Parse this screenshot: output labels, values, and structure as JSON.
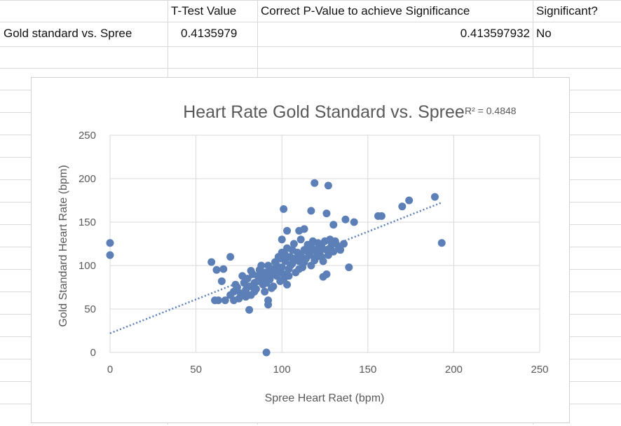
{
  "sheet": {
    "headers": [
      "T-Test Value",
      "Correct P-Value to achieve Significance",
      "Significant?"
    ],
    "row": {
      "label": "Gold standard vs. Spree",
      "ttest": "0.4135979",
      "pvalue": "0.413597932",
      "significant": "No"
    }
  },
  "chart_data": {
    "type": "scatter",
    "title": "Heart Rate Gold Standard vs. Spree",
    "r2_label": "R² = 0.4848",
    "xlabel": "Spree Heart Raet (bpm)",
    "ylabel": "Gold Standard Heart Rate (bpm)",
    "xlim": [
      0,
      250
    ],
    "ylim": [
      0,
      250
    ],
    "xticks": [
      0,
      50,
      100,
      150,
      200,
      250
    ],
    "yticks": [
      0,
      50,
      100,
      150,
      200,
      250
    ],
    "grid": true,
    "color": "#5b7fb6",
    "trendline": {
      "type": "linear",
      "intercept": 22,
      "slope": 0.78,
      "style": "dotted"
    },
    "points": [
      [
        0,
        126
      ],
      [
        0,
        112
      ],
      [
        91,
        0
      ],
      [
        119,
        195
      ],
      [
        127,
        192
      ],
      [
        101,
        165
      ],
      [
        117,
        163
      ],
      [
        126,
        160
      ],
      [
        137,
        153
      ],
      [
        142,
        150
      ],
      [
        130,
        147
      ],
      [
        156,
        157
      ],
      [
        158,
        157
      ],
      [
        170,
        168
      ],
      [
        174,
        175
      ],
      [
        189,
        179
      ],
      [
        193,
        126
      ],
      [
        139,
        98
      ],
      [
        124,
        87
      ],
      [
        126,
        90
      ],
      [
        59,
        104
      ],
      [
        70,
        110
      ],
      [
        62,
        95
      ],
      [
        66,
        96
      ],
      [
        65,
        82
      ],
      [
        61,
        60
      ],
      [
        63,
        60
      ],
      [
        67,
        60
      ],
      [
        72,
        60
      ],
      [
        81,
        49
      ],
      [
        92,
        60
      ],
      [
        92,
        55
      ],
      [
        100,
        130
      ],
      [
        128,
        120
      ],
      [
        134,
        118
      ],
      [
        103,
        140
      ],
      [
        110,
        140
      ],
      [
        113,
        142
      ],
      [
        72,
        70
      ],
      [
        74,
        75
      ],
      [
        76,
        68
      ],
      [
        78,
        80
      ],
      [
        79,
        72
      ],
      [
        80,
        85
      ],
      [
        81,
        76
      ],
      [
        82,
        66
      ],
      [
        83,
        90
      ],
      [
        84,
        80
      ],
      [
        85,
        73
      ],
      [
        86,
        88
      ],
      [
        87,
        95
      ],
      [
        88,
        82
      ],
      [
        89,
        78
      ],
      [
        90,
        92
      ],
      [
        90,
        70
      ],
      [
        91,
        86
      ],
      [
        92,
        100
      ],
      [
        93,
        84
      ],
      [
        94,
        90
      ],
      [
        95,
        96
      ],
      [
        95,
        76
      ],
      [
        96,
        104
      ],
      [
        97,
        88
      ],
      [
        98,
        110
      ],
      [
        98,
        94
      ],
      [
        99,
        82
      ],
      [
        100,
        98
      ],
      [
        100,
        115
      ],
      [
        101,
        90
      ],
      [
        102,
        105
      ],
      [
        103,
        120
      ],
      [
        103,
        78
      ],
      [
        104,
        96
      ],
      [
        105,
        110
      ],
      [
        106,
        102
      ],
      [
        107,
        125
      ],
      [
        108,
        92
      ],
      [
        109,
        115
      ],
      [
        110,
        105
      ],
      [
        111,
        130
      ],
      [
        112,
        98
      ],
      [
        113,
        118
      ],
      [
        114,
        108
      ],
      [
        115,
        124
      ],
      [
        116,
        112
      ],
      [
        117,
        100
      ],
      [
        118,
        128
      ],
      [
        119,
        118
      ],
      [
        120,
        110
      ],
      [
        121,
        126
      ],
      [
        122,
        115
      ],
      [
        123,
        122
      ],
      [
        124,
        105
      ],
      [
        125,
        128
      ],
      [
        126,
        118
      ],
      [
        127,
        112
      ],
      [
        128,
        130
      ],
      [
        129,
        124
      ],
      [
        130,
        116
      ],
      [
        131,
        128
      ],
      [
        133,
        122
      ],
      [
        136,
        125
      ],
      [
        77,
        88
      ],
      [
        79,
        64
      ],
      [
        82,
        94
      ],
      [
        84,
        70
      ],
      [
        86,
        82
      ],
      [
        88,
        100
      ],
      [
        89,
        90
      ],
      [
        91,
        80
      ],
      [
        93,
        96
      ],
      [
        94,
        74
      ],
      [
        96,
        92
      ],
      [
        97,
        100
      ],
      [
        99,
        108
      ],
      [
        101,
        84
      ],
      [
        102,
        112
      ],
      [
        104,
        88
      ],
      [
        105,
        100
      ],
      [
        106,
        118
      ],
      [
        108,
        108
      ],
      [
        110,
        96
      ],
      [
        111,
        112
      ],
      [
        113,
        104
      ],
      [
        115,
        116
      ],
      [
        117,
        122
      ],
      [
        119,
        106
      ],
      [
        121,
        119
      ],
      [
        123,
        110
      ],
      [
        75,
        62
      ],
      [
        73,
        78
      ],
      [
        70,
        66
      ]
    ]
  }
}
